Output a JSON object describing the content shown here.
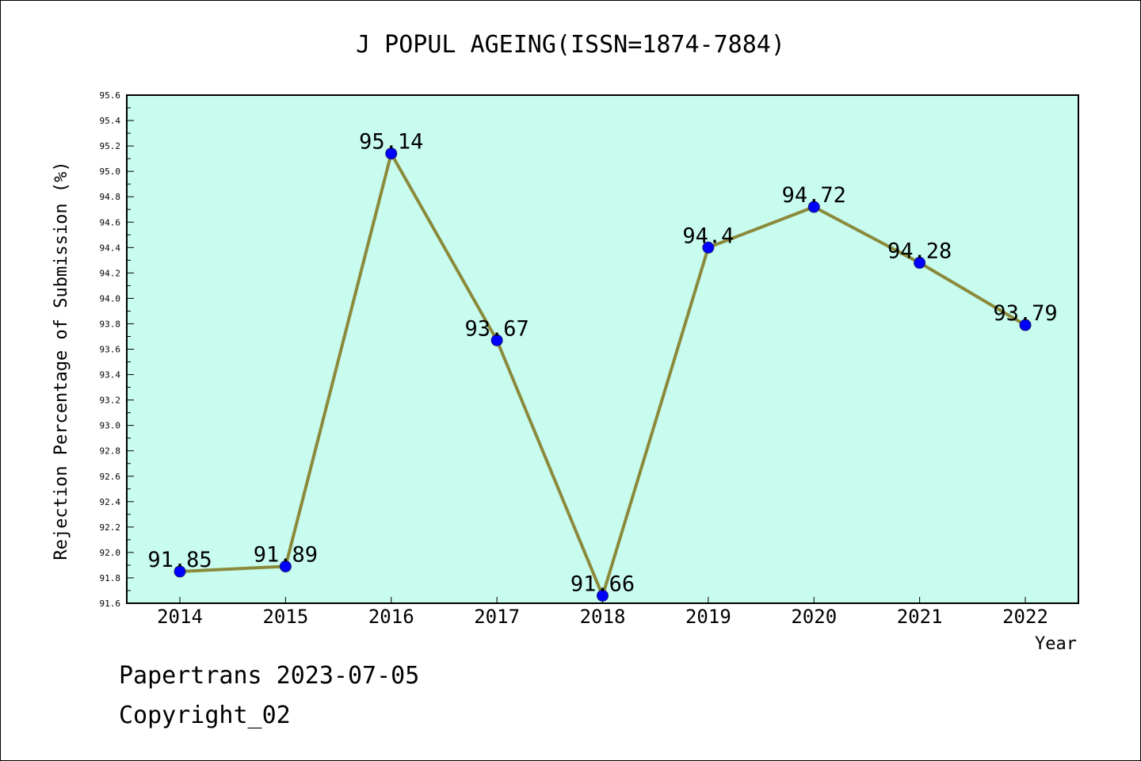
{
  "chart_data": {
    "type": "line",
    "title": "J POPUL AGEING(ISSN=1874-7884)",
    "xlabel": "Year",
    "ylabel": "Rejection Percentage of Submission (%)",
    "categories": [
      "2014",
      "2015",
      "2016",
      "2017",
      "2018",
      "2019",
      "2020",
      "2021",
      "2022"
    ],
    "values": [
      91.85,
      91.89,
      95.14,
      93.67,
      91.66,
      94.4,
      94.72,
      94.28,
      93.79
    ],
    "data_labels": [
      "91.85",
      "91.89",
      "95.14",
      "93.67",
      "91.66",
      "94.4",
      "94.72",
      "94.28",
      "93.79"
    ],
    "ylim": [
      91.6,
      95.6
    ],
    "yticks": [
      "91.6",
      "91.8",
      "92.0",
      "92.2",
      "92.4",
      "92.6",
      "92.8",
      "93.0",
      "93.2",
      "93.4",
      "93.6",
      "93.8",
      "94.0",
      "94.2",
      "94.4",
      "94.6",
      "94.8",
      "95.0",
      "95.2",
      "95.4",
      "95.6"
    ],
    "grid": false,
    "legend": "none",
    "colors": {
      "plot_background": "#c8fcee",
      "line": "#8b8a3c",
      "marker": "#0000ff"
    }
  },
  "footer": {
    "line1": "Papertrans 2023-07-05",
    "line2": "Copyright_02"
  }
}
